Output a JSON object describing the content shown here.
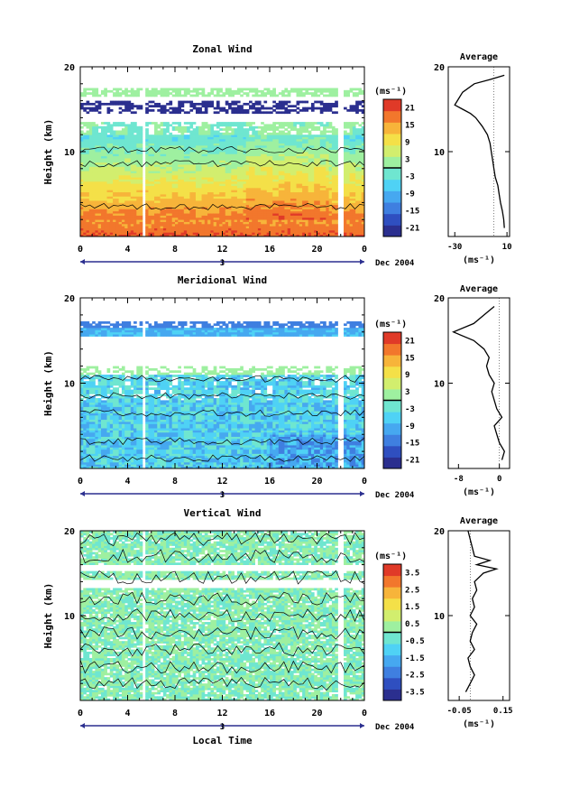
{
  "chart_data": [
    {
      "type": "heatmap",
      "title": "Zonal Wind",
      "ylabel": "Height (km)",
      "ylim": [
        0,
        20
      ],
      "yticks": [
        "20",
        "10"
      ],
      "xlim": [
        0,
        24
      ],
      "xticks": [
        "0",
        "4",
        "8",
        "12",
        "16",
        "20",
        "0"
      ],
      "date_tick": "3",
      "date_label": "Dec 2004",
      "colorbar": {
        "unit": "(ms⁻¹)",
        "ticks": [
          "21",
          "15",
          "9",
          "3",
          "-3",
          "-9",
          "-15",
          "-21"
        ],
        "min": -24,
        "max": 24
      },
      "profile": {
        "title": "Average",
        "xlim": [
          -35,
          12
        ],
        "xticks": [
          "-30",
          "10"
        ],
        "xlabel": "(ms⁻¹)",
        "yticks": [
          "20",
          "10"
        ],
        "heights": [
          1,
          2,
          3,
          4,
          5,
          6,
          7,
          8,
          9,
          10,
          11,
          12,
          13,
          14,
          14.5,
          15,
          15.5,
          16,
          17,
          18,
          18.5,
          19
        ],
        "values": [
          8,
          7.5,
          6.5,
          5,
          4,
          3,
          1,
          0,
          -1,
          -2,
          -3,
          -5,
          -9,
          -14,
          -18,
          -24,
          -30,
          -28,
          -24,
          -15,
          -3,
          8
        ]
      }
    },
    {
      "type": "heatmap",
      "title": "Meridional Wind",
      "ylabel": "Height (km)",
      "ylim": [
        0,
        20
      ],
      "yticks": [
        "20",
        "10"
      ],
      "xlim": [
        0,
        24
      ],
      "xticks": [
        "0",
        "4",
        "8",
        "12",
        "16",
        "20",
        "0"
      ],
      "date_tick": "3",
      "date_label": "Dec 2004",
      "colorbar": {
        "unit": "(ms⁻¹)",
        "ticks": [
          "21",
          "15",
          "9",
          "3",
          "-3",
          "-9",
          "-15",
          "-21"
        ],
        "min": -24,
        "max": 24
      },
      "profile": {
        "title": "Average",
        "xlim": [
          -10,
          2
        ],
        "xticks": [
          "-8",
          "0"
        ],
        "xlabel": "(ms⁻¹)",
        "yticks": [
          "20",
          "10"
        ],
        "heights": [
          1,
          2,
          3,
          4,
          5,
          6,
          7,
          8,
          9,
          10,
          11,
          12,
          13,
          14,
          15,
          16,
          17,
          18,
          19
        ],
        "values": [
          0.5,
          1,
          0,
          -0.5,
          -1,
          0.5,
          -0.5,
          -1,
          -1.5,
          -1,
          -2,
          -2.5,
          -2,
          -3,
          -5,
          -9,
          -5,
          -3,
          -1
        ]
      }
    },
    {
      "type": "heatmap",
      "title": "Vertical Wind",
      "ylabel": "Height (km)",
      "xlabel": "Local Time",
      "ylim": [
        0,
        20
      ],
      "yticks": [
        "20",
        "10"
      ],
      "xlim": [
        0,
        24
      ],
      "xticks": [
        "0",
        "4",
        "8",
        "12",
        "16",
        "20",
        "0"
      ],
      "date_tick": "3",
      "date_label": "Dec 2004",
      "colorbar": {
        "unit": "(ms⁻¹)",
        "ticks": [
          "3.5",
          "2.5",
          "1.5",
          "0.5",
          "-0.5",
          "-1.5",
          "-2.5",
          "-3.5"
        ],
        "min": -4,
        "max": 4
      },
      "profile": {
        "title": "Average",
        "xlim": [
          -0.1,
          0.18
        ],
        "xticks": [
          "-0.05",
          "0.15"
        ],
        "xlabel": "(ms⁻¹)",
        "yticks": [
          "20",
          "10"
        ],
        "heights": [
          1,
          2,
          3,
          4,
          5,
          6,
          7,
          8,
          9,
          10,
          11,
          12,
          13,
          14,
          15,
          15.5,
          16,
          16.5,
          17,
          18,
          19,
          20
        ],
        "values": [
          -0.02,
          0.0,
          0.02,
          0.0,
          -0.01,
          0.02,
          0.0,
          0.01,
          0.03,
          0.0,
          0.02,
          0.01,
          0.03,
          0.02,
          0.06,
          0.12,
          0.03,
          0.09,
          0.02,
          0.01,
          0.0,
          -0.01
        ]
      }
    }
  ]
}
